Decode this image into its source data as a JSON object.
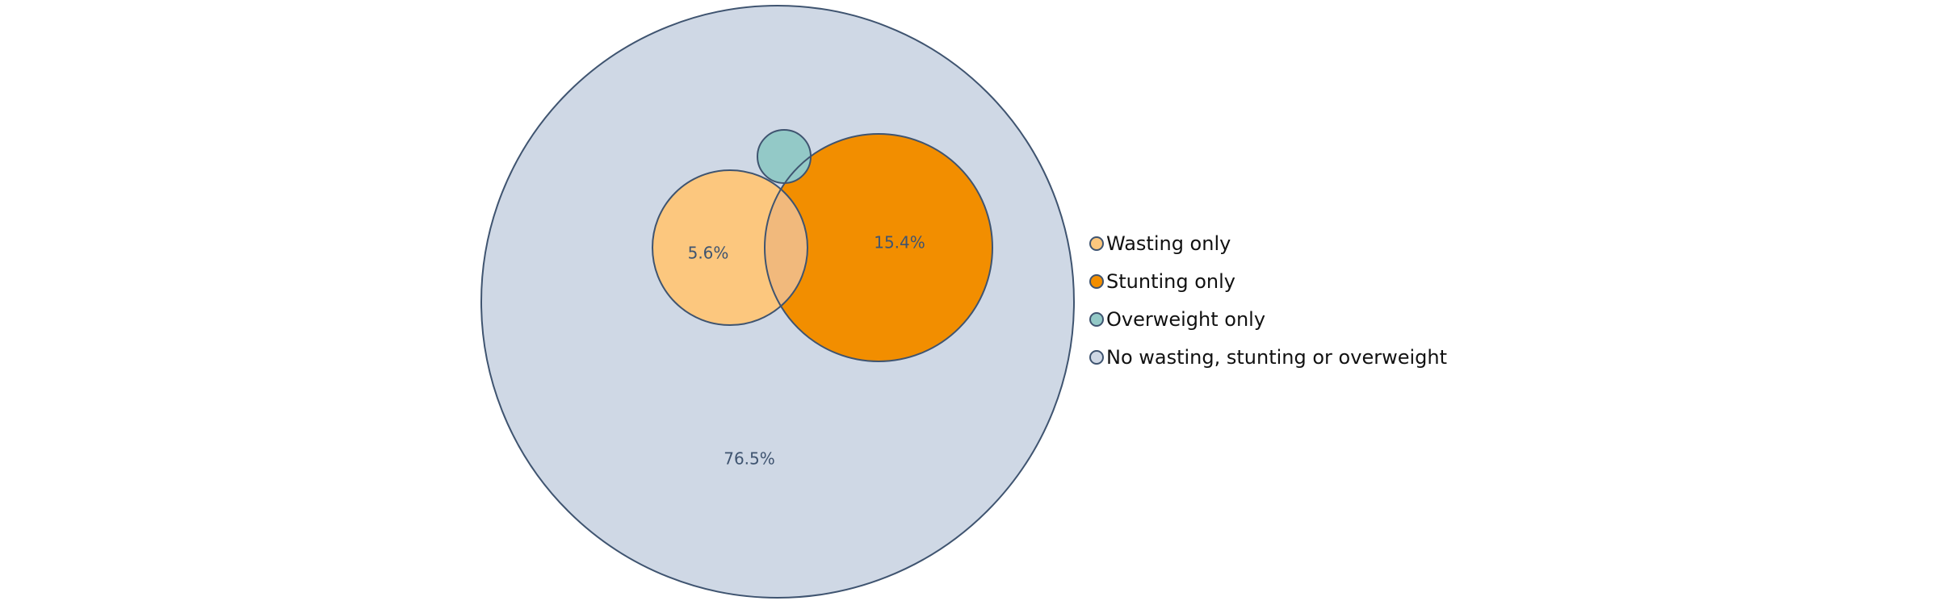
{
  "chart_data": {
    "type": "venn",
    "title": "",
    "sets": [
      {
        "name": "Wasting only",
        "color": "#fcc77e",
        "label": "5.6%",
        "value": 5.6
      },
      {
        "name": "Stunting only",
        "color": "#f28e00",
        "label": "15.4%",
        "value": 15.4
      },
      {
        "name": "Overweight only",
        "color": "#93c9c7",
        "label": "",
        "value": null
      },
      {
        "name": "No wasting, stunting or overweight",
        "color": "#cfd8e5",
        "label": "76.5%",
        "value": 76.5
      }
    ],
    "overlap_color": "#f1b97c",
    "outline_color": "#3f5470",
    "legend_position": "right"
  }
}
